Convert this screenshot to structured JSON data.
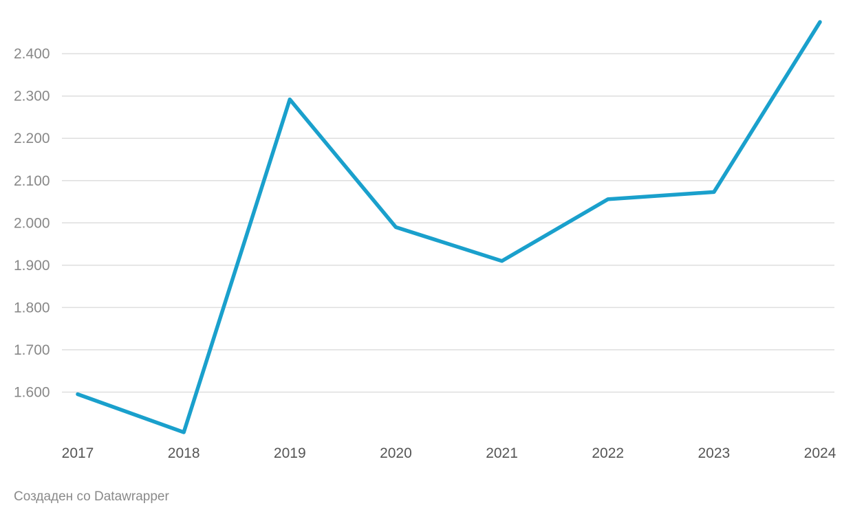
{
  "chart_data": {
    "type": "line",
    "title": "",
    "xlabel": "",
    "ylabel": "",
    "x": [
      "2017",
      "2018",
      "2019",
      "2020",
      "2021",
      "2022",
      "2023",
      "2024"
    ],
    "series": [
      {
        "values": [
          1595,
          1505,
          2292,
          1990,
          1910,
          2056,
          2073,
          2475
        ]
      }
    ],
    "ylim": [
      1500,
      2475
    ],
    "y_ticks": [
      1600,
      1700,
      1800,
      1900,
      2000,
      2100,
      2200,
      2300,
      2400
    ],
    "y_tick_labels": [
      "1.600",
      "1.700",
      "1.800",
      "1.900",
      "2.000",
      "2.100",
      "2.200",
      "2.300",
      "2.400"
    ],
    "grid": true,
    "line_color": "#1aa0cc"
  },
  "footer": {
    "credit": "Создаден со Datawrapper"
  }
}
